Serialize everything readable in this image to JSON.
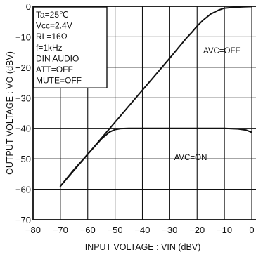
{
  "chart_data": {
    "type": "line",
    "xlabel": "INPUT VOLTAGE : VIN (dBV)",
    "ylabel": "OUTPUT VOLTAGE : VO (dBV)",
    "xlim": [
      -80,
      0
    ],
    "ylim": [
      -70,
      0
    ],
    "x_ticks": [
      -80,
      -70,
      -60,
      -50,
      -40,
      -30,
      -20,
      -10,
      0
    ],
    "x_tick_labels": [
      "−80",
      "−70",
      "−60",
      "−50",
      "−40",
      "−30",
      "−20",
      "−10",
      "0"
    ],
    "y_ticks": [
      0,
      -10,
      -20,
      -30,
      -40,
      -50,
      -60,
      -70
    ],
    "y_tick_labels": [
      "0",
      "−10",
      "−20",
      "−30",
      "−40",
      "−50",
      "−60",
      "−70"
    ],
    "grid": true,
    "conditions": [
      "Ta=25℃",
      "Vcc=2.4V",
      "RL=16Ω",
      "f=1kHz",
      "DIN AUDIO",
      "ATT=OFF",
      "MUTE=OFF"
    ],
    "series": [
      {
        "name": "AVC=OFF",
        "x": [
          -70,
          -60,
          -50,
          -40,
          -30,
          -24,
          -22,
          -20,
          -18,
          -15,
          -12,
          -10,
          -6,
          -3,
          0
        ],
        "y": [
          -59,
          -48.5,
          -38,
          -27.5,
          -17,
          -10.5,
          -8.6,
          -6.5,
          -4.7,
          -2.5,
          -1.2,
          -0.6,
          -0.3,
          -0.15,
          -0.1
        ]
      },
      {
        "name": "AVC=ON",
        "x": [
          -70,
          -65,
          -60,
          -55,
          -52,
          -50,
          -48,
          -45,
          -40,
          -30,
          -20,
          -10,
          -5,
          -2,
          0
        ],
        "y": [
          -59,
          -53.5,
          -48.5,
          -43.5,
          -41.2,
          -40.4,
          -40.1,
          -40,
          -40,
          -40,
          -40,
          -40,
          -40.2,
          -40.6,
          -41.3
        ]
      }
    ],
    "annotations": [
      "AVC=OFF",
      "AVC=ON"
    ]
  }
}
